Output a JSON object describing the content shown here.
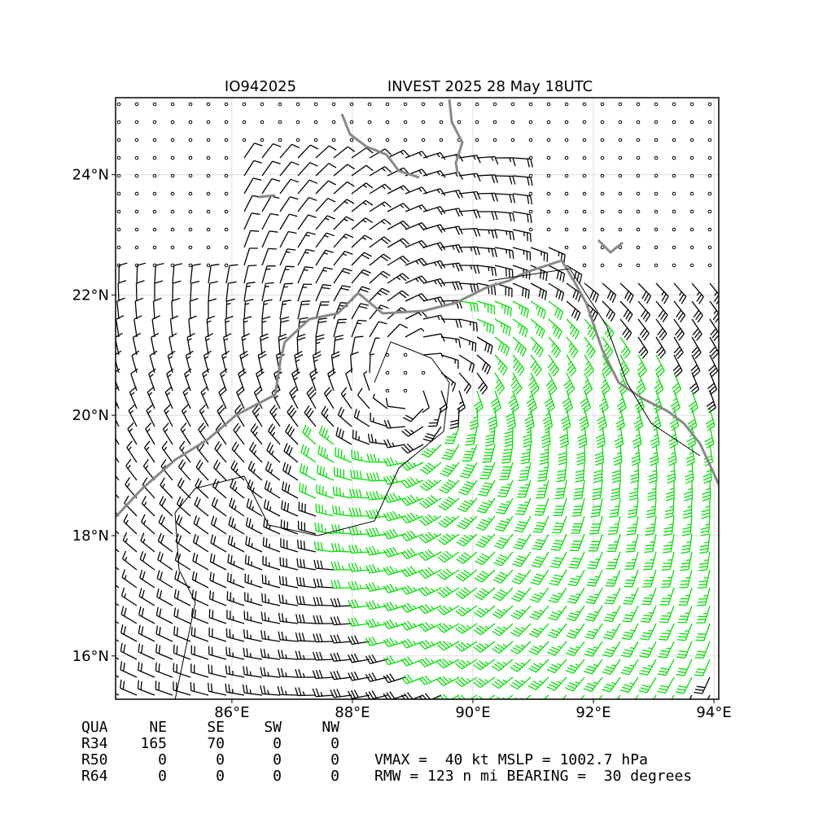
{
  "title_left": "IO942025",
  "title_right": "INVEST 2025 28 May 18UTC",
  "xlim": [
    84.07,
    94.08
  ],
  "ylim": [
    15.28,
    25.28
  ],
  "xticks": [
    {
      "value": 86,
      "label": "86°E"
    },
    {
      "value": 88,
      "label": "88°E"
    },
    {
      "value": 90,
      "label": "90°E"
    },
    {
      "value": 92,
      "label": "92°E"
    },
    {
      "value": 94,
      "label": "94°E"
    }
  ],
  "yticks": [
    {
      "value": 16,
      "label": "16°N"
    },
    {
      "value": 18,
      "label": "18°N"
    },
    {
      "value": 20,
      "label": "20°N"
    },
    {
      "value": 22,
      "label": "22°N"
    },
    {
      "value": 24,
      "label": "24°N"
    }
  ],
  "table": {
    "header": [
      "QUA",
      "NE",
      "SE",
      "SW",
      "NW"
    ],
    "rows": [
      [
        "R34",
        165,
        70,
        0,
        0
      ],
      [
        "R50",
        0,
        0,
        0,
        0
      ],
      [
        "R64",
        0,
        0,
        0,
        0
      ]
    ]
  },
  "info": [
    "VMAX =  40 kt MSLP = 1002.7 hPa",
    "RMW = 123 n mi BEARING =  30 degrees"
  ]
}
